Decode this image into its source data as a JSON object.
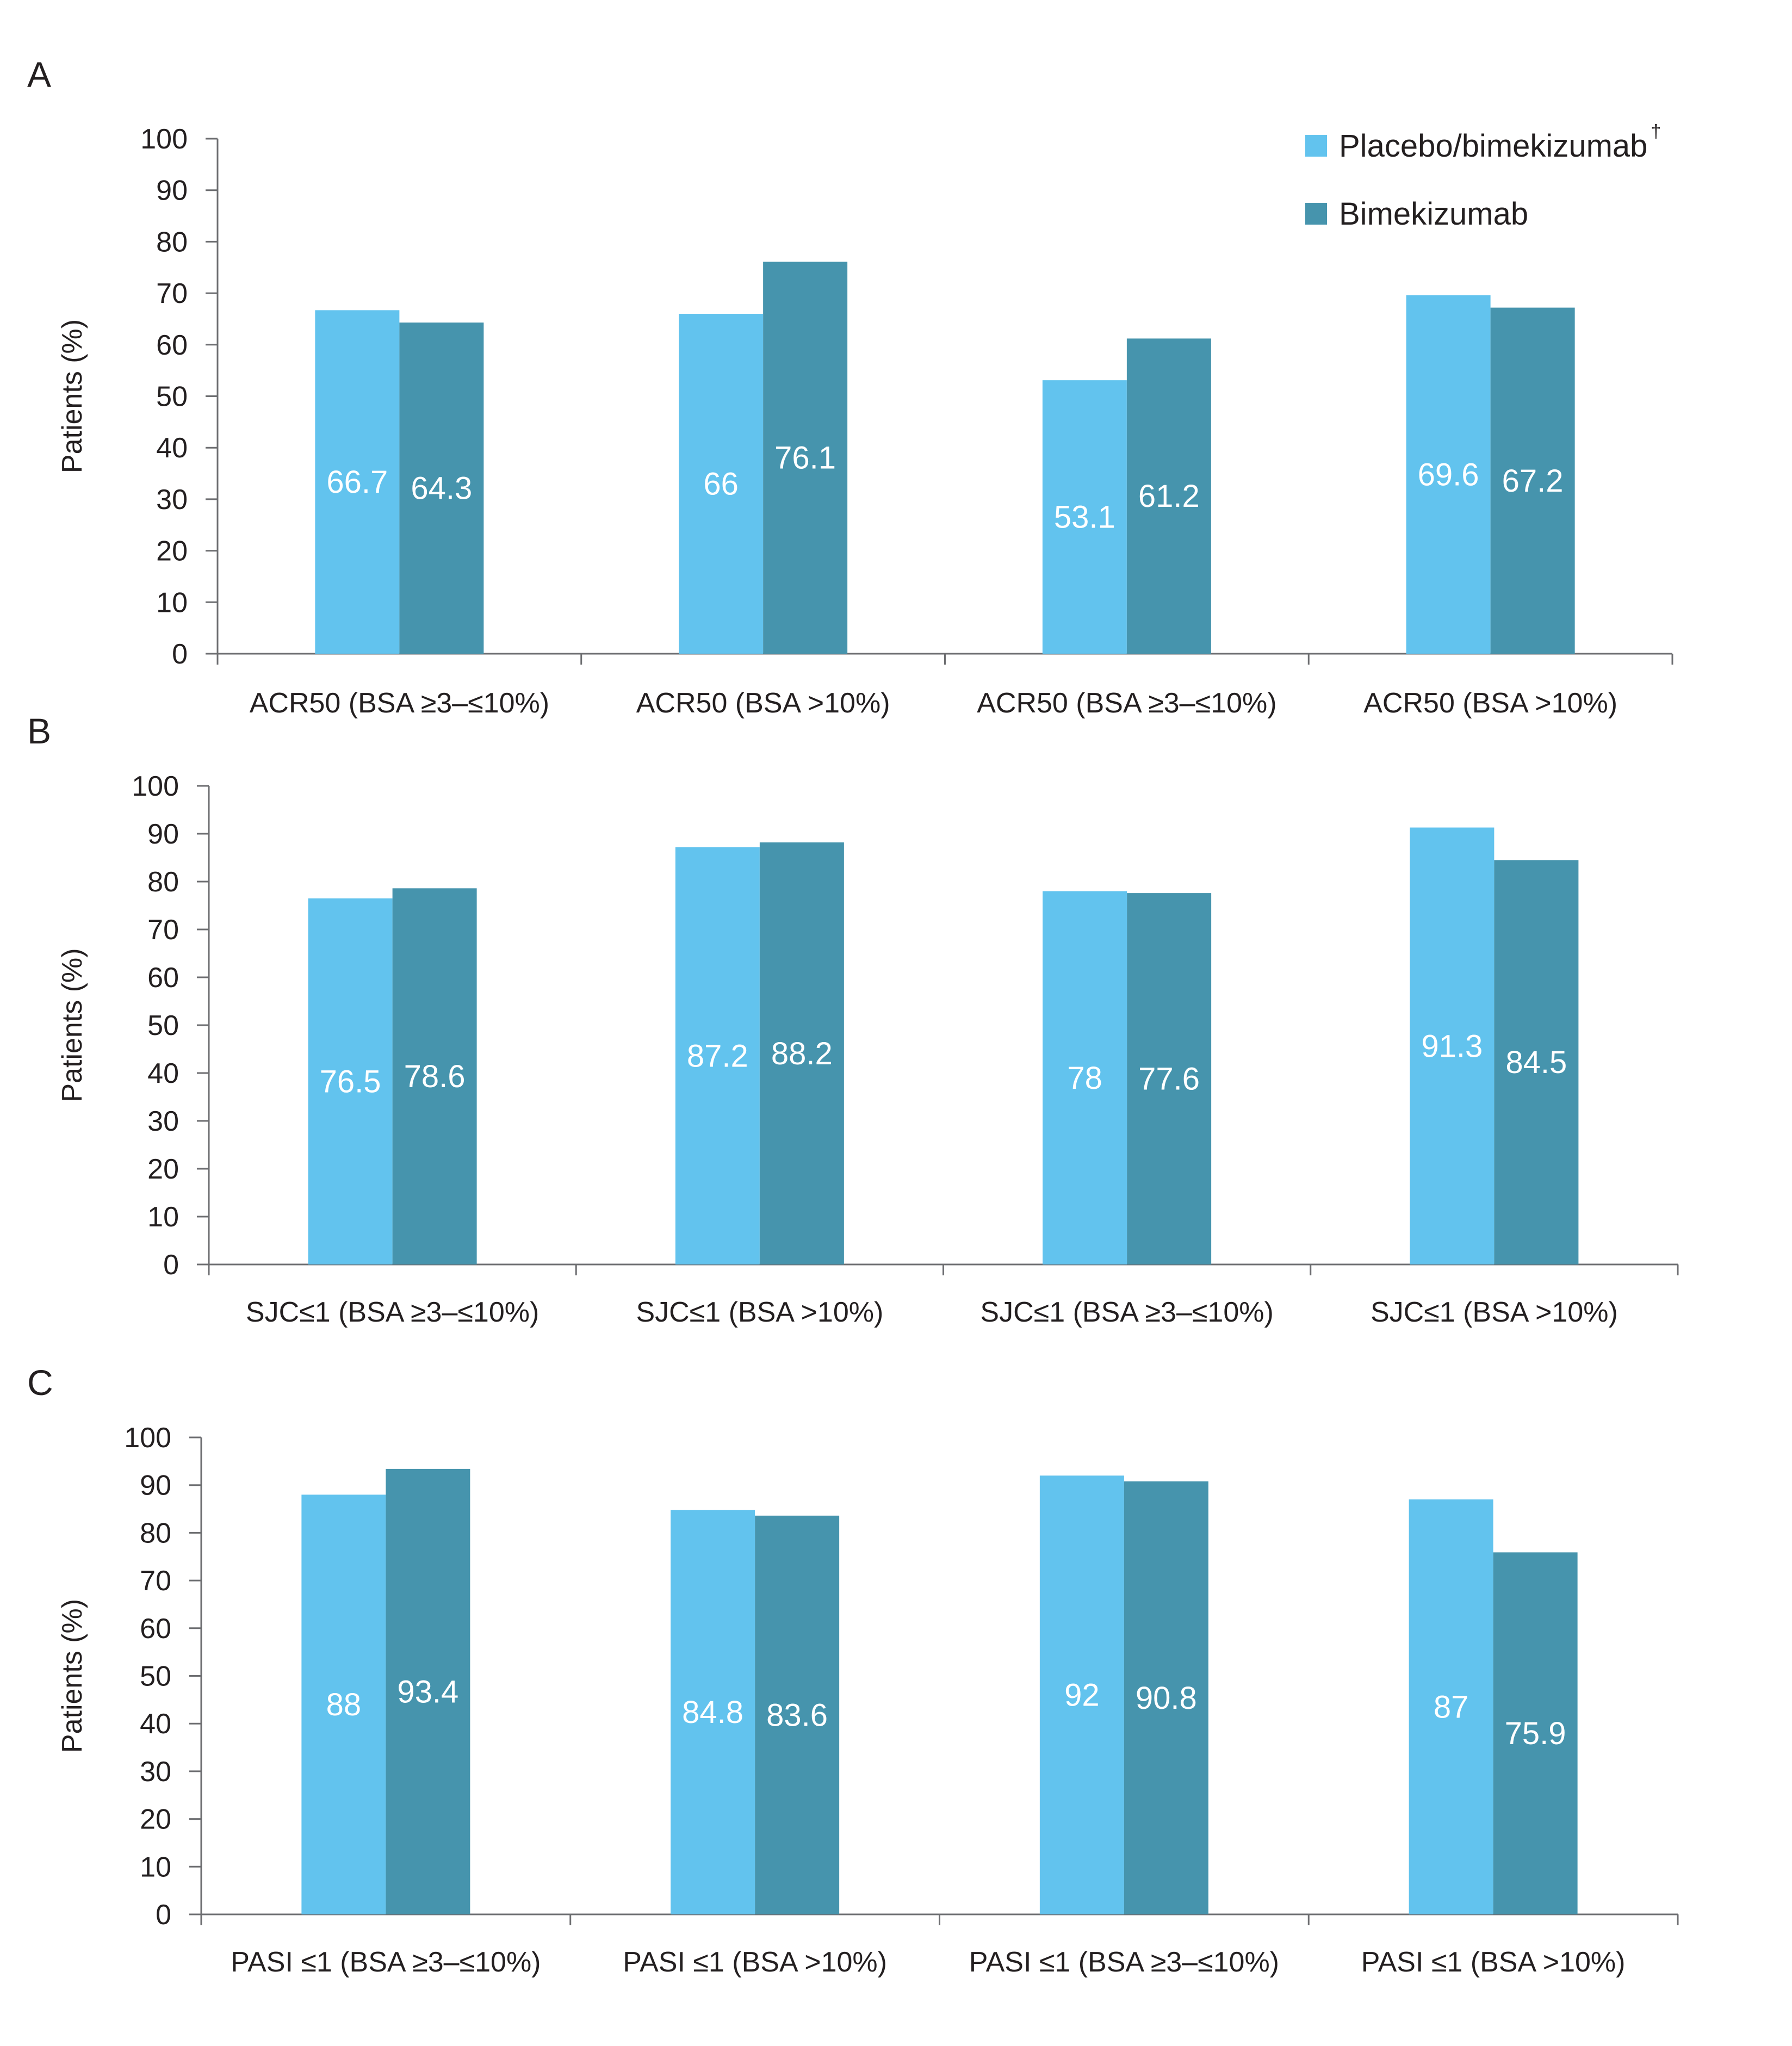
{
  "legend": {
    "items": [
      {
        "label": "Placebo/bimekizumab",
        "superscript": "†",
        "color": "#62c3ee"
      },
      {
        "label": "Bimekizumab",
        "superscript": "",
        "color": "#4694ad"
      }
    ]
  },
  "chart_data": [
    {
      "panel": "A",
      "type": "bar",
      "ylabel": "Patients (%)",
      "ylim": [
        0,
        100
      ],
      "yticks": [
        0,
        10,
        20,
        30,
        40,
        50,
        60,
        70,
        80,
        90,
        100
      ],
      "grid": false,
      "legend_position": "top-right",
      "categories": [
        "ACR50 (BSA ≥3–≤10%)",
        "ACR50 (BSA >10%)",
        "ACR50 (BSA ≥3–≤10%)",
        "ACR50 (BSA >10%)"
      ],
      "series": [
        {
          "name": "Placebo/bimekizumab",
          "values": [
            66.7,
            66,
            53.1,
            69.6
          ]
        },
        {
          "name": "Bimekizumab",
          "values": [
            64.3,
            76.1,
            61.2,
            67.2
          ]
        }
      ],
      "value_labels": [
        [
          "66.7",
          "66",
          "53.1",
          "69.6"
        ],
        [
          "64.3",
          "76.1",
          "61.2",
          "67.2"
        ]
      ]
    },
    {
      "panel": "B",
      "type": "bar",
      "ylabel": "Patients (%)",
      "ylim": [
        0,
        100
      ],
      "yticks": [
        0,
        10,
        20,
        30,
        40,
        50,
        60,
        70,
        80,
        90,
        100
      ],
      "grid": false,
      "categories": [
        "SJC≤1 (BSA ≥3–≤10%)",
        "SJC≤1 (BSA >10%)",
        "SJC≤1 (BSA ≥3–≤10%)",
        "SJC≤1 (BSA >10%)"
      ],
      "series": [
        {
          "name": "Placebo/bimekizumab",
          "values": [
            76.5,
            87.2,
            78,
            91.3
          ]
        },
        {
          "name": "Bimekizumab",
          "values": [
            78.6,
            88.2,
            77.6,
            84.5
          ]
        }
      ],
      "value_labels": [
        [
          "76.5",
          "87.2",
          "78",
          "91.3"
        ],
        [
          "78.6",
          "88.2",
          "77.6",
          "84.5"
        ]
      ]
    },
    {
      "panel": "C",
      "type": "bar",
      "ylabel": "Patients (%)",
      "ylim": [
        0,
        100
      ],
      "yticks": [
        0,
        10,
        20,
        30,
        40,
        50,
        60,
        70,
        80,
        90,
        100
      ],
      "grid": false,
      "categories": [
        "PASI ≤1 (BSA ≥3–≤10%)",
        "PASI ≤1 (BSA >10%)",
        "PASI ≤1 (BSA ≥3–≤10%)",
        "PASI ≤1 (BSA >10%)"
      ],
      "series": [
        {
          "name": "Placebo/bimekizumab",
          "values": [
            88,
            84.8,
            92,
            87
          ]
        },
        {
          "name": "Bimekizumab",
          "values": [
            93.4,
            83.6,
            90.8,
            75.9
          ]
        }
      ],
      "value_labels": [
        [
          "88",
          "84.8",
          "92",
          "87"
        ],
        [
          "93.4",
          "83.6",
          "90.8",
          "75.9"
        ]
      ]
    }
  ]
}
